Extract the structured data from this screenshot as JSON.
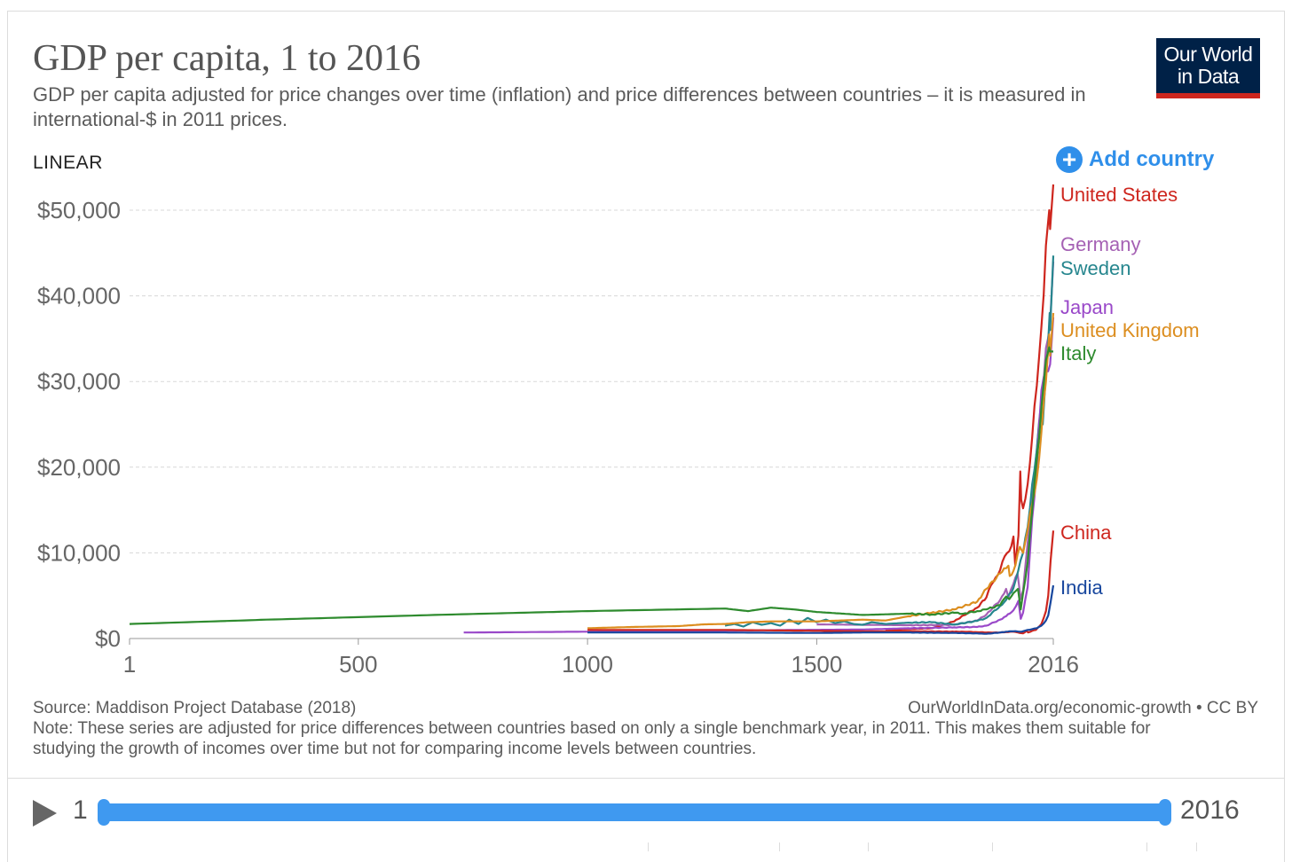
{
  "header": {
    "title": "GDP per capita, 1 to 2016",
    "subtitle": "GDP per capita adjusted for price changes over time (inflation) and price differences between countries – it is measured in international-$ in 2011 prices.",
    "logo_line1": "Our World",
    "logo_line2": "in Data"
  },
  "controls": {
    "scale_toggle": "LINEAR",
    "add_country": "Add country",
    "add_icon": "plus-circle-icon"
  },
  "footer": {
    "source": "Source: Maddison Project Database (2018)",
    "credit": "OurWorldInData.org/economic-growth • CC BY",
    "note": "Note: These series are adjusted for price differences between countries based on only a single benchmark year, in 2011. This makes them suitable for studying the growth of incomes over time but not for comparing income levels between countries."
  },
  "timeline": {
    "start_label": "1",
    "end_label": "2016",
    "play_icon": "play-icon",
    "range_start": 1,
    "range_end": 2016
  },
  "chart_data": {
    "type": "line",
    "title": "GDP per capita, 1 to 2016",
    "xlabel": "",
    "ylabel": "",
    "xlim": [
      1,
      2016
    ],
    "ylim": [
      0,
      52000
    ],
    "x_ticks": [
      1,
      500,
      1000,
      1500,
      2016
    ],
    "x_tick_labels": [
      "1",
      "500",
      "1000",
      "1500",
      "2016"
    ],
    "y_ticks": [
      0,
      10000,
      20000,
      30000,
      40000,
      50000
    ],
    "y_tick_labels": [
      "$0",
      "$10,000",
      "$20,000",
      "$30,000",
      "$40,000",
      "$50,000"
    ],
    "grid": "horizontal dashed",
    "legend": "right, labels at line ends",
    "series": [
      {
        "name": "United States",
        "color": "#ce261e",
        "points": [
          [
            1650,
            950
          ],
          [
            1700,
            1100
          ],
          [
            1750,
            1200
          ],
          [
            1800,
            2000
          ],
          [
            1820,
            2700
          ],
          [
            1850,
            3600
          ],
          [
            1870,
            4800
          ],
          [
            1880,
            6200
          ],
          [
            1890,
            7100
          ],
          [
            1900,
            8000
          ],
          [
            1910,
            9600
          ],
          [
            1920,
            10200
          ],
          [
            1929,
            11900
          ],
          [
            1933,
            8500
          ],
          [
            1940,
            12000
          ],
          [
            1944,
            19500
          ],
          [
            1946,
            16200
          ],
          [
            1950,
            15200
          ],
          [
            1960,
            18000
          ],
          [
            1970,
            23500
          ],
          [
            1980,
            29500
          ],
          [
            1990,
            36400
          ],
          [
            2000,
            45900
          ],
          [
            2007,
            50000
          ],
          [
            2009,
            47800
          ],
          [
            2016,
            53000
          ]
        ]
      },
      {
        "name": "Germany",
        "color": "#a561b4",
        "points": [
          [
            1500,
            1650
          ],
          [
            1600,
            1600
          ],
          [
            1700,
            1550
          ],
          [
            1800,
            1600
          ],
          [
            1850,
            2100
          ],
          [
            1870,
            2800
          ],
          [
            1900,
            4500
          ],
          [
            1913,
            5800
          ],
          [
            1918,
            4800
          ],
          [
            1929,
            6400
          ],
          [
            1938,
            7600
          ],
          [
            1945,
            4600
          ],
          [
            1950,
            5600
          ],
          [
            1960,
            11200
          ],
          [
            1970,
            16400
          ],
          [
            1980,
            22000
          ],
          [
            1990,
            27700
          ],
          [
            2000,
            33900
          ],
          [
            2009,
            36800
          ],
          [
            2016,
            44000
          ]
        ]
      },
      {
        "name": "Sweden",
        "color": "#26868e",
        "points": [
          [
            1300,
            1500
          ],
          [
            1320,
            1700
          ],
          [
            1340,
            1400
          ],
          [
            1360,
            1900
          ],
          [
            1380,
            1600
          ],
          [
            1400,
            1800
          ],
          [
            1420,
            1500
          ],
          [
            1440,
            2200
          ],
          [
            1460,
            1700
          ],
          [
            1480,
            2400
          ],
          [
            1500,
            1900
          ],
          [
            1520,
            2200
          ],
          [
            1540,
            1800
          ],
          [
            1560,
            2000
          ],
          [
            1580,
            1700
          ],
          [
            1600,
            1600
          ],
          [
            1620,
            1900
          ],
          [
            1650,
            1700
          ],
          [
            1700,
            1850
          ],
          [
            1750,
            1900
          ],
          [
            1800,
            1650
          ],
          [
            1850,
            2050
          ],
          [
            1870,
            2400
          ],
          [
            1900,
            3800
          ],
          [
            1913,
            4500
          ],
          [
            1929,
            5900
          ],
          [
            1939,
            7800
          ],
          [
            1950,
            10000
          ],
          [
            1960,
            13000
          ],
          [
            1970,
            18000
          ],
          [
            1980,
            22000
          ],
          [
            1990,
            27000
          ],
          [
            1993,
            25000
          ],
          [
            2000,
            31000
          ],
          [
            2008,
            38000
          ],
          [
            2009,
            36000
          ],
          [
            2016,
            44700
          ]
        ]
      },
      {
        "name": "Japan",
        "color": "#9a49c9",
        "points": [
          [
            730,
            700
          ],
          [
            1000,
            800
          ],
          [
            1150,
            900
          ],
          [
            1280,
            900
          ],
          [
            1450,
            1000
          ],
          [
            1600,
            1050
          ],
          [
            1700,
            1200
          ],
          [
            1800,
            1300
          ],
          [
            1850,
            1350
          ],
          [
            1870,
            1500
          ],
          [
            1900,
            2200
          ],
          [
            1913,
            2600
          ],
          [
            1929,
            3300
          ],
          [
            1940,
            4400
          ],
          [
            1945,
            2300
          ],
          [
            1950,
            3000
          ],
          [
            1960,
            6000
          ],
          [
            1970,
            14000
          ],
          [
            1980,
            20000
          ],
          [
            1990,
            29000
          ],
          [
            1995,
            30500
          ],
          [
            2000,
            31500
          ],
          [
            2009,
            32000
          ],
          [
            2016,
            37500
          ]
        ]
      },
      {
        "name": "United Kingdom",
        "color": "#dc8e20",
        "points": [
          [
            1000,
            1200
          ],
          [
            1100,
            1350
          ],
          [
            1200,
            1450
          ],
          [
            1252,
            1650
          ],
          [
            1300,
            1700
          ],
          [
            1348,
            1900
          ],
          [
            1400,
            2000
          ],
          [
            1500,
            2000
          ],
          [
            1600,
            2200
          ],
          [
            1650,
            2100
          ],
          [
            1700,
            2600
          ],
          [
            1750,
            3000
          ],
          [
            1800,
            3400
          ],
          [
            1850,
            4300
          ],
          [
            1870,
            5800
          ],
          [
            1900,
            7600
          ],
          [
            1913,
            8200
          ],
          [
            1918,
            8500
          ],
          [
            1921,
            7300
          ],
          [
            1929,
            7900
          ],
          [
            1943,
            10700
          ],
          [
            1950,
            10000
          ],
          [
            1960,
            12700
          ],
          [
            1970,
            15700
          ],
          [
            1980,
            18600
          ],
          [
            1990,
            24100
          ],
          [
            2000,
            30000
          ],
          [
            2007,
            35500
          ],
          [
            2009,
            33000
          ],
          [
            2016,
            38000
          ]
        ]
      },
      {
        "name": "Italy",
        "color": "#2e8b2e",
        "points": [
          [
            1,
            1700
          ],
          [
            300,
            2200
          ],
          [
            700,
            2800
          ],
          [
            1000,
            3200
          ],
          [
            1300,
            3500
          ],
          [
            1350,
            3200
          ],
          [
            1400,
            3600
          ],
          [
            1450,
            3400
          ],
          [
            1500,
            3100
          ],
          [
            1600,
            2750
          ],
          [
            1700,
            2900
          ],
          [
            1750,
            2800
          ],
          [
            1800,
            3000
          ],
          [
            1820,
            2900
          ],
          [
            1850,
            3200
          ],
          [
            1870,
            3400
          ],
          [
            1900,
            3900
          ],
          [
            1913,
            4900
          ],
          [
            1920,
            4600
          ],
          [
            1929,
            5300
          ],
          [
            1939,
            5800
          ],
          [
            1945,
            3400
          ],
          [
            1950,
            5300
          ],
          [
            1960,
            8900
          ],
          [
            1970,
            15000
          ],
          [
            1980,
            21000
          ],
          [
            1990,
            27000
          ],
          [
            2000,
            32500
          ],
          [
            2007,
            34000
          ],
          [
            2009,
            33500
          ],
          [
            2016,
            33500
          ]
        ]
      },
      {
        "name": "China",
        "color": "#ce261e",
        "points": [
          [
            1000,
            1000
          ],
          [
            1300,
            1000
          ],
          [
            1500,
            900
          ],
          [
            1600,
            850
          ],
          [
            1700,
            850
          ],
          [
            1800,
            800
          ],
          [
            1820,
            800
          ],
          [
            1850,
            750
          ],
          [
            1870,
            700
          ],
          [
            1900,
            700
          ],
          [
            1913,
            750
          ],
          [
            1929,
            800
          ],
          [
            1950,
            600
          ],
          [
            1958,
            900
          ],
          [
            1961,
            700
          ],
          [
            1970,
            900
          ],
          [
            1978,
            1000
          ],
          [
            1990,
            1700
          ],
          [
            2000,
            3200
          ],
          [
            2005,
            5000
          ],
          [
            2010,
            9000
          ],
          [
            2016,
            12600
          ]
        ]
      },
      {
        "name": "India",
        "color": "#18479e",
        "points": [
          [
            1000,
            700
          ],
          [
            1300,
            700
          ],
          [
            1500,
            650
          ],
          [
            1600,
            700
          ],
          [
            1700,
            700
          ],
          [
            1800,
            650
          ],
          [
            1850,
            600
          ],
          [
            1870,
            550
          ],
          [
            1900,
            700
          ],
          [
            1913,
            800
          ],
          [
            1929,
            850
          ],
          [
            1947,
            800
          ],
          [
            1950,
            850
          ],
          [
            1960,
            1000
          ],
          [
            1970,
            1100
          ],
          [
            1980,
            1200
          ],
          [
            1990,
            1500
          ],
          [
            2000,
            2100
          ],
          [
            2005,
            2700
          ],
          [
            2010,
            4200
          ],
          [
            2016,
            6200
          ]
        ]
      }
    ]
  }
}
